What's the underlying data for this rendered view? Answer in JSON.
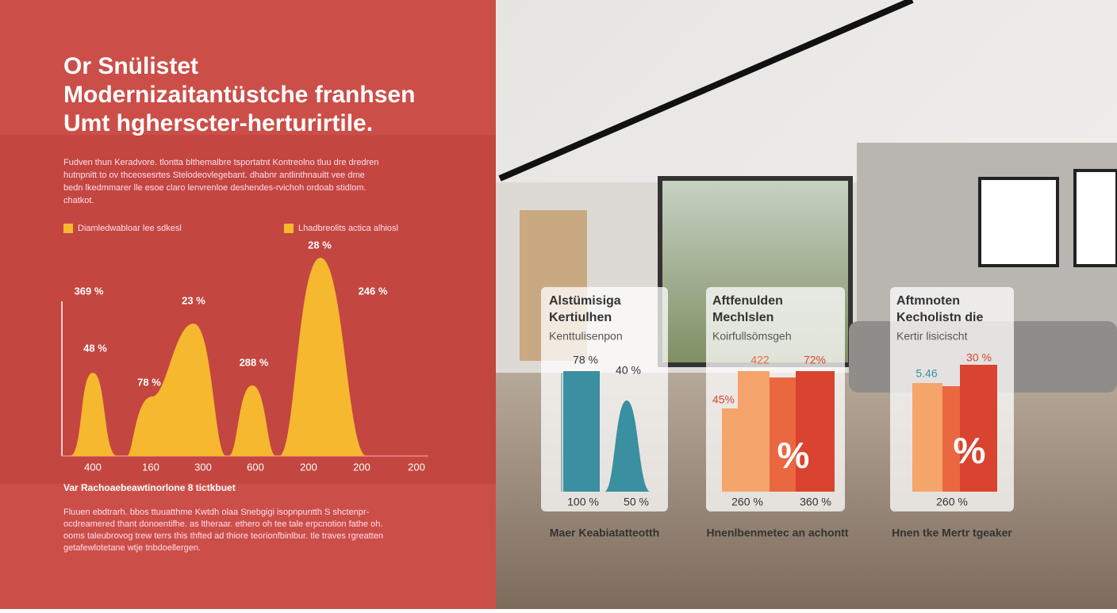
{
  "header": {
    "title": [
      "Or Snülistet",
      "Modernizaitantüstche franhsen",
      "Umt hgherscter-herturirtile."
    ],
    "intro": [
      "Fudven thun Keradvore. tlontta blthemalbre tsportatnt Kontreolno tluu dre dredren",
      "hutnpnitt to ov thceosesrtes Stelodeovlegebant. dhabnr antlinthnauitt vee dme",
      "bedn lkedmmarer lle esoe claro lenvrenloe deshendes-rvichoh ordoab stidlom.",
      "chatkot."
    ]
  },
  "left_chart": {
    "legend": [
      "Diamledwabloar lee sdkesl",
      "Lhadbreolits actica alhiosl"
    ],
    "peak_labels": [
      "28 %",
      "369 %",
      "23 %",
      "246 %",
      "48 %",
      "78 %",
      "288 %"
    ],
    "x_labels": [
      "400",
      "160",
      "300",
      "600",
      "200",
      "200",
      "200"
    ],
    "caption": "Var Rachoaebeawtinorlone 8 tictkbuet",
    "notes": [
      "Fluuen ebdtrarh. bbos ttuuatthme Kwtdh olaa Snebgigi isopnpuntth S shctenpr-",
      "ocdreamered thant donoentifhe. as ltheraar. ethero oh tee tale erpcnotion fathe oh.",
      "ooms taleubrovog trew terrs this thfted ad thiore teorionfbinlbur. tle traves rgreatten",
      "getafewlotetane wtje tnbdoellergen."
    ]
  },
  "cards": [
    {
      "title": [
        "Alstümisiga",
        "Kertiulhen"
      ],
      "subtitle": "Kenttulisenpon",
      "labels": [
        "78 %",
        "40 %",
        "100 %",
        "50 %"
      ],
      "caption": "Maer Keabiatatteotth"
    },
    {
      "title": [
        "Aftfenulden",
        "Mechlslen"
      ],
      "subtitle": "Koirfullsömsgeh",
      "labels": [
        "422",
        "72%",
        "45%",
        "%",
        "260 %",
        "360 %"
      ],
      "caption": "Hnenlbenmetec an achontt"
    },
    {
      "title": [
        "Aftmnoten",
        "Kecholistn die"
      ],
      "subtitle": "Kertir lisicischt",
      "labels": [
        "5.46",
        "30 %",
        "%",
        "260 %"
      ],
      "caption": "Hnen tke Mertr tgeaker"
    }
  ]
}
